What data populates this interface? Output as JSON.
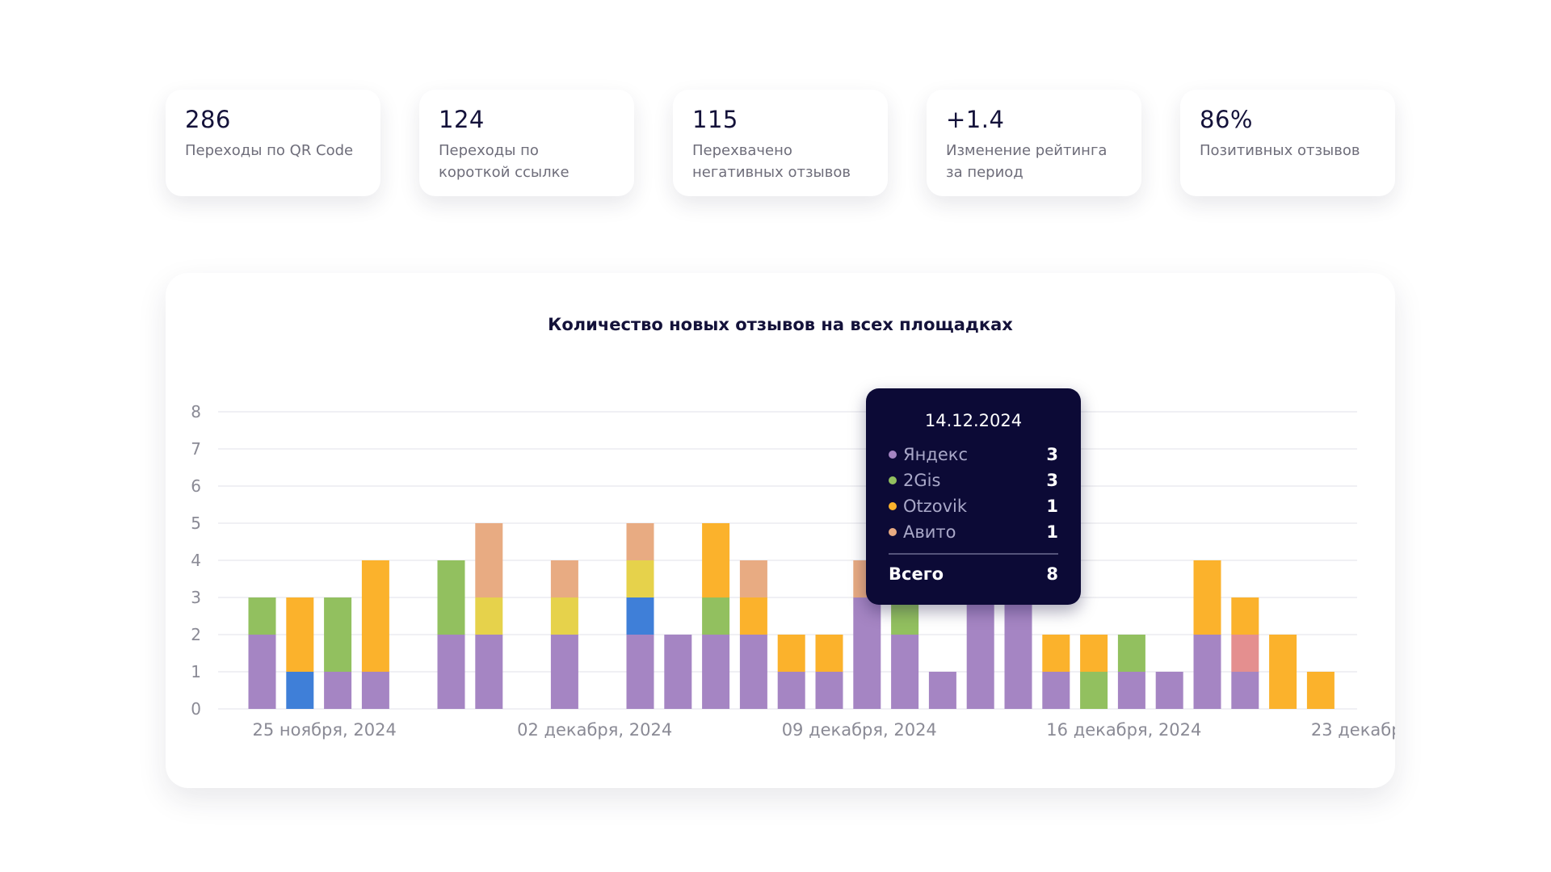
{
  "kpis": [
    {
      "value": "286",
      "label": "Переходы по QR Code"
    },
    {
      "value": "124",
      "label": "Переходы по короткой ссылке"
    },
    {
      "value": "115",
      "label": "Перехвачено негативных отзывов"
    },
    {
      "value": "+1.4",
      "label": "Изменение рейтинга за период"
    },
    {
      "value": "86%",
      "label": "Позитивных отзывов"
    }
  ],
  "chart_data": {
    "type": "bar",
    "stacked": true,
    "title": "Количество новых отзывов на всех площадках",
    "xlabel": "",
    "ylabel": "",
    "ylim": [
      0,
      8
    ],
    "yticks": [
      "0",
      "1",
      "2",
      "3",
      "4",
      "5",
      "6",
      "7",
      "8"
    ],
    "grid": true,
    "x": [
      "2024-11-25",
      "2024-11-26",
      "2024-11-27",
      "2024-11-28",
      "2024-11-29",
      "2024-11-30",
      "2024-12-01",
      "2024-12-02",
      "2024-12-03",
      "2024-12-04",
      "2024-12-05",
      "2024-12-06",
      "2024-12-07",
      "2024-12-08",
      "2024-12-09",
      "2024-12-10",
      "2024-12-11",
      "2024-12-12",
      "2024-12-13",
      "2024-12-14",
      "2024-12-15",
      "2024-12-16",
      "2024-12-17",
      "2024-12-18",
      "2024-12-19",
      "2024-12-20",
      "2024-12-21",
      "2024-12-22",
      "2024-12-23"
    ],
    "xtick_labels": [
      {
        "at": "2024-11-25",
        "text": "25 ноября, 2024"
      },
      {
        "at": "2024-12-02",
        "text": "02 декабря, 2024"
      },
      {
        "at": "2024-12-09",
        "text": "09 декабря, 2024"
      },
      {
        "at": "2024-12-16",
        "text": "16 декабря, 2024"
      },
      {
        "at": "2024-12-23",
        "text": "23 декабр"
      }
    ],
    "series": [
      {
        "name": "Яндекс",
        "color": "#a585c3",
        "values": [
          2,
          0,
          1,
          1,
          0,
          2,
          2,
          0,
          2,
          0,
          2,
          2,
          2,
          2,
          1,
          1,
          3,
          2,
          1,
          3,
          3,
          1,
          0,
          1,
          1,
          2,
          1,
          0,
          0
        ]
      },
      {
        "name": "",
        "color": "#3f7fd8",
        "values": [
          0,
          1,
          0,
          0,
          0,
          0,
          0,
          0,
          0,
          0,
          1,
          0,
          0,
          0,
          0,
          0,
          0,
          0,
          0,
          0,
          0,
          0,
          0,
          0,
          0,
          0,
          0,
          0,
          0
        ]
      },
      {
        "name": "2Gis",
        "color": "#92c05f",
        "values": [
          1,
          0,
          2,
          0,
          0,
          2,
          0,
          0,
          0,
          0,
          0,
          0,
          1,
          0,
          0,
          0,
          0,
          1,
          0,
          3,
          0,
          0,
          1,
          1,
          0,
          0,
          0,
          0,
          0
        ]
      },
      {
        "name": "",
        "color": "#e6d24b",
        "values": [
          0,
          0,
          0,
          0,
          0,
          0,
          1,
          0,
          1,
          0,
          1,
          0,
          0,
          0,
          0,
          0,
          0,
          0,
          0,
          0,
          0,
          0,
          0,
          0,
          0,
          0,
          0,
          0,
          0
        ]
      },
      {
        "name": "",
        "color": "#e48f8f",
        "values": [
          0,
          0,
          0,
          0,
          0,
          0,
          0,
          0,
          0,
          0,
          0,
          0,
          0,
          0,
          0,
          0,
          0,
          0,
          0,
          0,
          0,
          0,
          0,
          0,
          0,
          0,
          1,
          0,
          0
        ]
      },
      {
        "name": "Otzovik",
        "color": "#fbb22c",
        "values": [
          0,
          2,
          0,
          3,
          0,
          0,
          0,
          0,
          0,
          0,
          0,
          0,
          2,
          1,
          1,
          1,
          0,
          0,
          0,
          1,
          0,
          1,
          1,
          0,
          0,
          2,
          1,
          2,
          1
        ]
      },
      {
        "name": "Авито",
        "color": "#e8ab82",
        "values": [
          0,
          0,
          0,
          0,
          0,
          0,
          2,
          0,
          1,
          0,
          1,
          0,
          0,
          1,
          0,
          0,
          1,
          0,
          0,
          1,
          0,
          0,
          0,
          0,
          0,
          0,
          0,
          0,
          0
        ]
      }
    ],
    "tooltip": {
      "date": "14.12.2024",
      "items": [
        {
          "name": "Яндекс",
          "value": "3",
          "color": "#a585c3"
        },
        {
          "name": "2Gis",
          "value": "3",
          "color": "#92c05f"
        },
        {
          "name": "Otzovik",
          "value": "1",
          "color": "#fbb22c"
        },
        {
          "name": "Авито",
          "value": "1",
          "color": "#e8ab82"
        }
      ],
      "total_label": "Всего",
      "total_value": "8"
    }
  }
}
